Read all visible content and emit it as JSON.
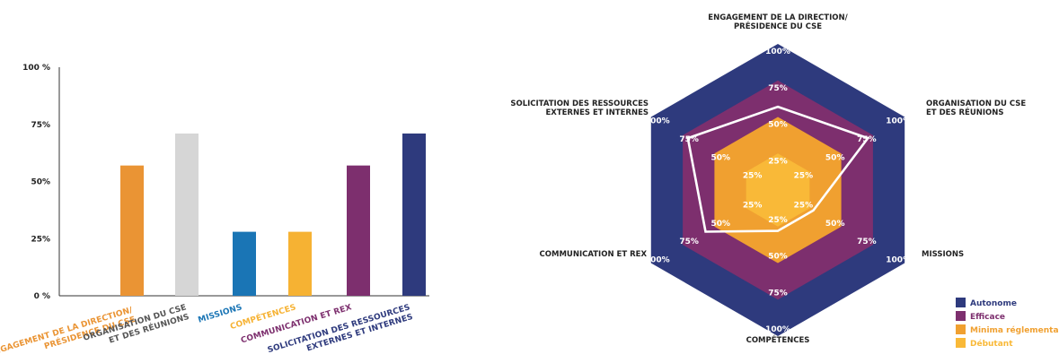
{
  "chart_data": [
    {
      "type": "bar",
      "categories": [
        [
          "ENGAGEMENT DE LA DIRECTION/",
          "PRÉSIDENCE DU CSE"
        ],
        [
          "ORGANISATION DU CSE",
          "ET DES RÉUNIONS"
        ],
        [
          "MISSIONS"
        ],
        [
          "COMPÉTENCES"
        ],
        [
          "COMMUNICATION ET REX"
        ],
        [
          "SOLICITATION DES RESSOURCES",
          "EXTERNES ET INTERNES"
        ]
      ],
      "values": [
        57,
        71,
        28,
        28,
        57,
        71
      ],
      "colors": [
        "#ea9434",
        "#d6d6d6",
        "#1a75b5",
        "#f6b233",
        "#7d2f6e",
        "#2e3a7d"
      ],
      "label_colors": [
        "#ea9434",
        "#555555",
        "#1a75b5",
        "#f6b233",
        "#7d2f6e",
        "#2e3a7d"
      ],
      "ylim": [
        0,
        100
      ],
      "yticks": [
        0,
        25,
        50,
        75,
        100
      ],
      "ytick_labels": [
        "0 %",
        "25%",
        "50%",
        "75%",
        "100 %"
      ]
    },
    {
      "type": "radar",
      "axes": [
        [
          "ENGAGEMENT DE LA DIRECTION/",
          "PRÉSIDENCE DU CSE"
        ],
        [
          "ORGANISATION DU CSE",
          "ET DES RÉUNIONS"
        ],
        [
          "MISSIONS"
        ],
        [
          "COMPÉTENCES"
        ],
        [
          "COMMUNICATION ET REX"
        ],
        [
          "SOLICITATION DES RESSOURCES",
          "EXTERNES ET INTERNES"
        ]
      ],
      "ranges": [
        0,
        100
      ],
      "ring_labels": [
        "25%",
        "50%",
        "75%",
        "100%"
      ],
      "bands": [
        {
          "name": "Autonome",
          "color": "#2e3a7d",
          "max": 100
        },
        {
          "name": "Efficace",
          "color": "#7d2f6e",
          "max": 75
        },
        {
          "name": "Minima réglementaires",
          "color": "#f0a030",
          "max": 50
        },
        {
          "name": "Débutant",
          "color": "#f9b938",
          "max": 25
        }
      ],
      "series": [
        {
          "values": [
            57,
            71,
            28,
            28,
            57,
            71
          ],
          "color": "#ffffff"
        }
      ],
      "legend": [
        {
          "label": "Autonome",
          "color": "#2e3a7d"
        },
        {
          "label": "Efficace",
          "color": "#7d2f6e"
        },
        {
          "label": "Minima réglementaires",
          "color": "#f0a030"
        },
        {
          "label": "Débutant",
          "color": "#f9b938"
        }
      ],
      "legend_position": "bottom-right"
    }
  ]
}
